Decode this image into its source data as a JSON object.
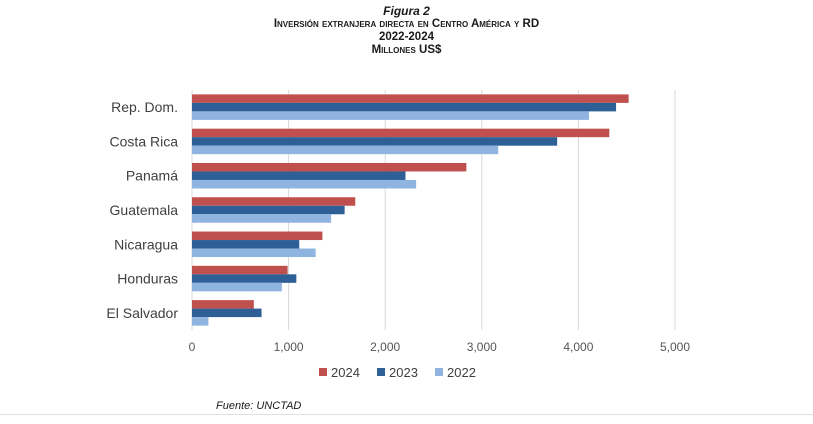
{
  "figure_label": "Figura 2",
  "title": "Inversión extranjera directa en Centro América y RD",
  "subtitle": "2022-2024",
  "units": "Millones US$",
  "source": "Fuente: UNCTAD",
  "chart_data": {
    "type": "bar",
    "orientation": "horizontal",
    "title": "Inversión extranjera directa en Centro América y RD",
    "subtitle": "2022-2024",
    "ylabel": "",
    "xlabel": "",
    "categories": [
      "Rep. Dom.",
      "Costa Rica",
      "Panamá",
      "Guatemala",
      "Nicaragua",
      "Honduras",
      "El Salvador"
    ],
    "series": [
      {
        "name": "2024",
        "color": "#c0504d",
        "values": [
          4520,
          4320,
          2840,
          1690,
          1350,
          990,
          640
        ]
      },
      {
        "name": "2023",
        "color": "#2e5f96",
        "values": [
          4390,
          3780,
          2210,
          1580,
          1110,
          1080,
          720
        ]
      },
      {
        "name": "2022",
        "color": "#8fb4e0",
        "values": [
          4110,
          3170,
          2320,
          1440,
          1280,
          930,
          170
        ]
      }
    ],
    "xlim": [
      0,
      5000
    ],
    "xticks": [
      0,
      1000,
      2000,
      3000,
      4000,
      5000
    ],
    "xtick_labels": [
      "0",
      "1,000",
      "2,000",
      "3,000",
      "4,000",
      "5,000"
    ],
    "grid": true,
    "legend_position": "bottom"
  }
}
